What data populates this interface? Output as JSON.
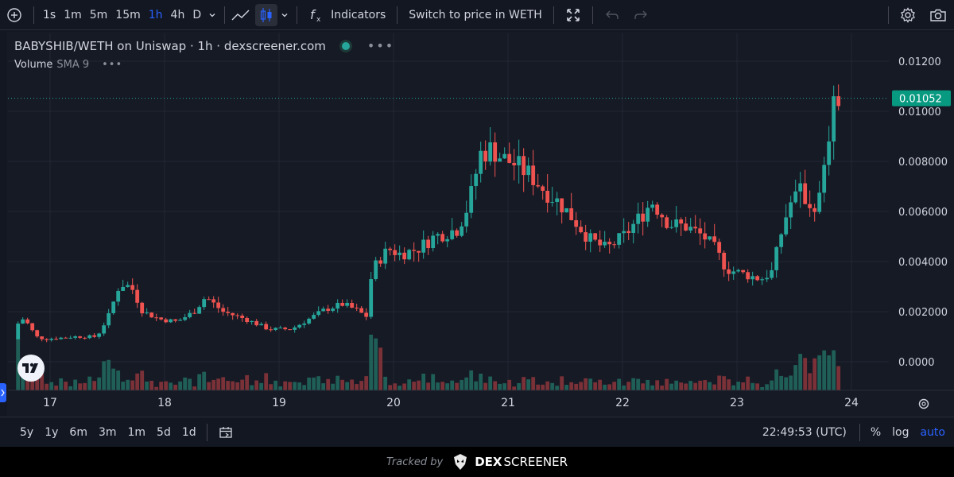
{
  "toolbar": {
    "intervals": [
      "1s",
      "1m",
      "5m",
      "15m",
      "1h",
      "4h",
      "D"
    ],
    "active_interval": "1h",
    "indicators_label": "Indicators",
    "switch_label": "Switch to price in WETH"
  },
  "legend": {
    "title": "BABYSHIB/WETH on Uniswap · 1h · dexscreener.com",
    "volume_label": "Volume",
    "sma_label": "SMA 9"
  },
  "bottom": {
    "ranges": [
      "5y",
      "1y",
      "6m",
      "3m",
      "1m",
      "5d",
      "1d"
    ],
    "time": "22:49:53 (UTC)",
    "percent": "%",
    "log": "log",
    "auto": "auto"
  },
  "footer": {
    "tracked_by": "Tracked by",
    "brand_a": "DEX",
    "brand_b": "SCREENER"
  },
  "colors": {
    "up": "#26a69a",
    "down": "#ef5350",
    "up_vol": "#1f5f57",
    "down_vol": "#7a3137",
    "accent": "#2962ff",
    "bg": "#131722"
  },
  "chart_data": {
    "type": "candlestick",
    "timeframe": "1h",
    "pair": "BABYSHIB/WETH",
    "x_tick_labels": [
      "17",
      "18",
      "19",
      "20",
      "21",
      "22",
      "23",
      "24"
    ],
    "y_tick_labels": [
      "0.01200",
      "0.01000",
      "0.008000",
      "0.006000",
      "0.004000",
      "0.002000",
      "0.0000"
    ],
    "y_ticks": [
      0.012,
      0.01,
      0.008,
      0.006,
      0.004,
      0.002,
      0.0
    ],
    "ylim": [
      -0.0005,
      0.0125
    ],
    "last_price": 0.01052,
    "last_price_label": "0.01052",
    "grid": true,
    "price_path": [
      [
        16.72,
        0.0009
      ],
      [
        16.78,
        0.0018
      ],
      [
        16.85,
        0.0015
      ],
      [
        16.92,
        0.001
      ],
      [
        17.0,
        0.0009
      ],
      [
        17.25,
        0.001
      ],
      [
        17.45,
        0.001
      ],
      [
        17.55,
        0.0018
      ],
      [
        17.65,
        0.0031
      ],
      [
        17.75,
        0.003
      ],
      [
        17.85,
        0.002
      ],
      [
        18.0,
        0.0017
      ],
      [
        18.15,
        0.0016
      ],
      [
        18.3,
        0.002
      ],
      [
        18.4,
        0.0026
      ],
      [
        18.55,
        0.002
      ],
      [
        18.75,
        0.0017
      ],
      [
        18.95,
        0.0013
      ],
      [
        19.15,
        0.0013
      ],
      [
        19.3,
        0.0017
      ],
      [
        19.45,
        0.0021
      ],
      [
        19.6,
        0.0023
      ],
      [
        19.75,
        0.002
      ],
      [
        19.8,
        0.0017
      ],
      [
        19.85,
        0.0035
      ],
      [
        19.9,
        0.004
      ],
      [
        20.0,
        0.0045
      ],
      [
        20.1,
        0.0043
      ],
      [
        20.25,
        0.0045
      ],
      [
        20.4,
        0.005
      ],
      [
        20.6,
        0.0053
      ],
      [
        20.7,
        0.0063
      ],
      [
        20.8,
        0.0083
      ],
      [
        20.9,
        0.0085
      ],
      [
        21.0,
        0.0081
      ],
      [
        21.1,
        0.0079
      ],
      [
        21.25,
        0.0074
      ],
      [
        21.35,
        0.0069
      ],
      [
        21.5,
        0.0063
      ],
      [
        21.65,
        0.0055
      ],
      [
        21.75,
        0.0049
      ],
      [
        21.9,
        0.0045
      ],
      [
        22.05,
        0.005
      ],
      [
        22.2,
        0.0058
      ],
      [
        22.3,
        0.0064
      ],
      [
        22.45,
        0.0055
      ],
      [
        22.6,
        0.0054
      ],
      [
        22.75,
        0.005
      ],
      [
        22.85,
        0.0045
      ],
      [
        22.95,
        0.0037
      ],
      [
        23.1,
        0.0035
      ],
      [
        23.25,
        0.0033
      ],
      [
        23.35,
        0.0036
      ],
      [
        23.42,
        0.005
      ],
      [
        23.5,
        0.0063
      ],
      [
        23.6,
        0.0068
      ],
      [
        23.7,
        0.0061
      ],
      [
        23.78,
        0.0067
      ],
      [
        23.83,
        0.0086
      ],
      [
        23.88,
        0.01
      ],
      [
        23.92,
        0.01052
      ]
    ],
    "volume_overlay": "relative, bottom pane"
  }
}
